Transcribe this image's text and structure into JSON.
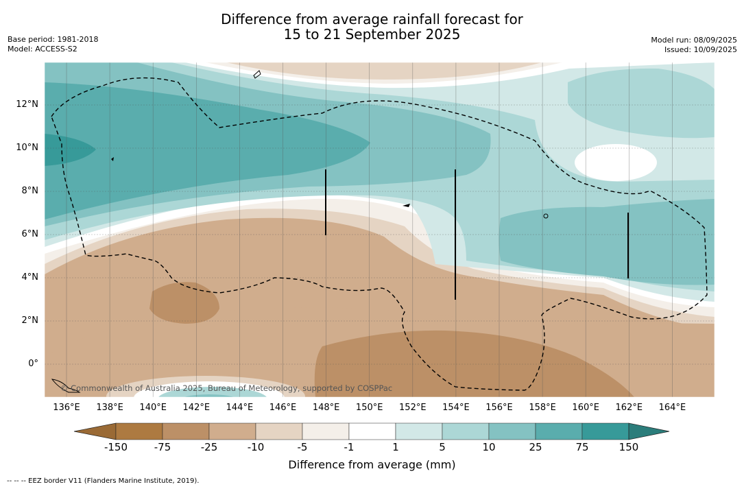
{
  "title_line1": "Difference from average rainfall forecast for",
  "title_line2": "15 to 21 September 2025",
  "base_period": "Base period: 1981-2018",
  "model": "Model: ACCESS-S2",
  "model_run": "Model run: 08/09/2025",
  "issued": "Issued: 10/09/2025",
  "credit": "© Commonwealth of Australia 2025, Bureau of Meteorology, supported by COSPPac",
  "footnote": "--  --  -- EEZ border V11 (Flanders Marine Institute, 2019).",
  "lon_labels": [
    "136°E",
    "138°E",
    "140°E",
    "142°E",
    "144°E",
    "146°E",
    "148°E",
    "150°E",
    "152°E",
    "154°E",
    "156°E",
    "158°E",
    "160°E",
    "162°E",
    "164°E"
  ],
  "lat_labels": [
    "12°N",
    "10°N",
    "8°N",
    "6°N",
    "4°N",
    "2°N",
    "0°"
  ],
  "colorbar": {
    "title": "Difference from average (mm)",
    "labels": [
      "-150",
      "-75",
      "-25",
      "-10",
      "-5",
      "-1",
      "1",
      "5",
      "10",
      "25",
      "75",
      "150"
    ],
    "colors": [
      "#ad7a41",
      "#bc9067",
      "#d0ad8d",
      "#e5d4c3",
      "#f4efe9",
      "#ffffff",
      "#d2e8e7",
      "#acd7d6",
      "#84c2c2",
      "#5aadad",
      "#379a99"
    ],
    "under_color": "#9a6a35",
    "over_color": "#2b7d7b"
  },
  "colors": {
    "dry_extreme": "#ad7a41",
    "wet_extreme": "#379a99"
  }
}
